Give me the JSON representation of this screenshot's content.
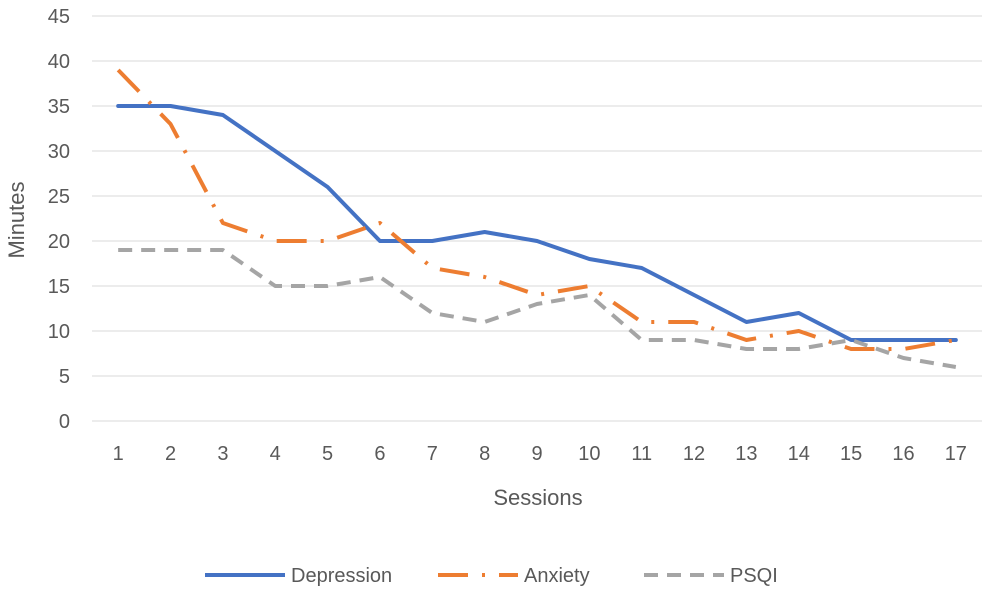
{
  "chart_data": {
    "type": "line",
    "title": "",
    "xlabel": "Sessions",
    "ylabel": "Minutes",
    "categories": [
      "1",
      "2",
      "3",
      "4",
      "5",
      "6",
      "7",
      "8",
      "9",
      "10",
      "11",
      "12",
      "13",
      "14",
      "15",
      "16",
      "17"
    ],
    "ylim": [
      0,
      45
    ],
    "yticks": [
      0,
      5,
      10,
      15,
      20,
      25,
      30,
      35,
      40,
      45
    ],
    "grid": true,
    "legend_position": "bottom",
    "series": [
      {
        "name": "Depression",
        "color": "#4472C4",
        "style": "solid",
        "values": [
          35,
          35,
          34,
          30,
          26,
          20,
          20,
          21,
          20,
          18,
          17,
          14,
          11,
          12,
          9,
          9,
          9
        ]
      },
      {
        "name": "Anxiety",
        "color": "#ED7D31",
        "style": "dash-dot",
        "values": [
          39,
          33,
          22,
          20,
          20,
          22,
          17,
          16,
          14,
          15,
          11,
          11,
          9,
          10,
          8,
          8,
          9
        ]
      },
      {
        "name": "PSQI",
        "color": "#A5A5A5",
        "style": "dash",
        "values": [
          19,
          19,
          19,
          15,
          15,
          16,
          12,
          11,
          13,
          14,
          9,
          9,
          8,
          8,
          9,
          7,
          6
        ]
      }
    ]
  }
}
